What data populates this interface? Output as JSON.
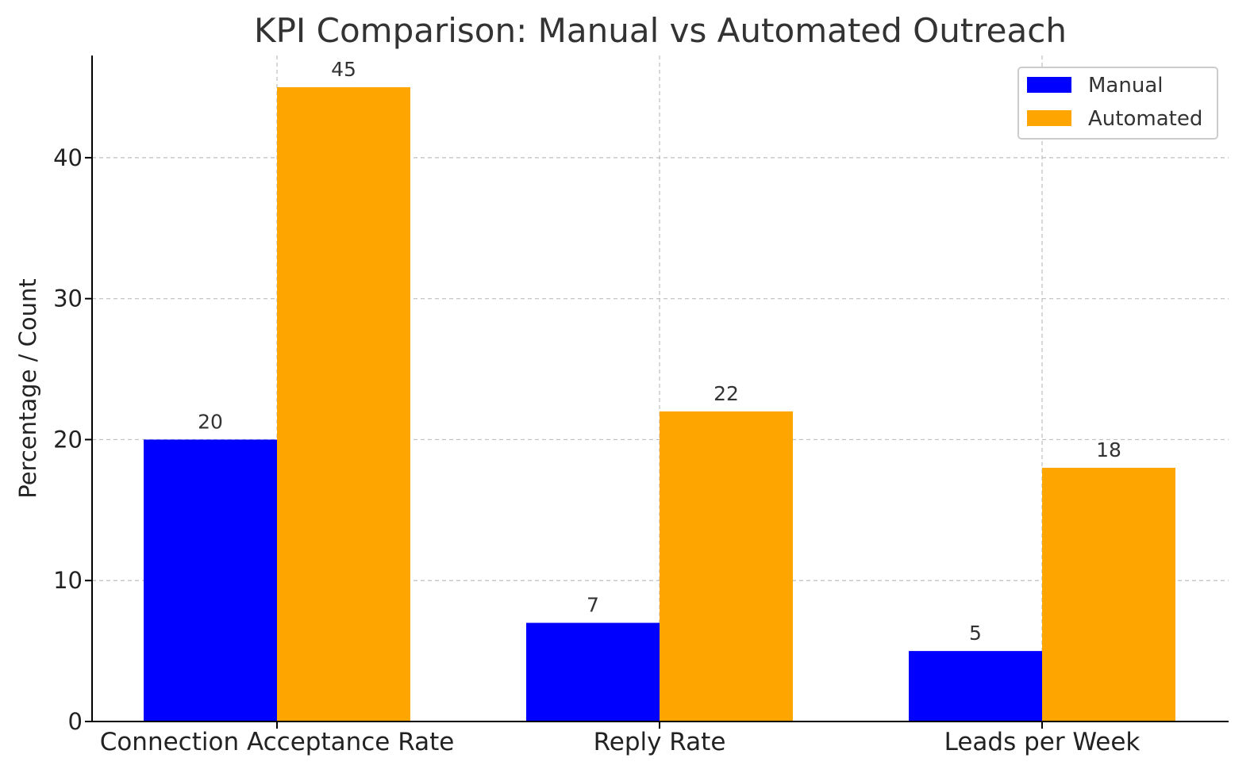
{
  "chart_data": {
    "type": "bar",
    "title": "KPI Comparison: Manual vs Automated Outreach",
    "xlabel": "",
    "ylabel": "Percentage / Count",
    "categories": [
      "Connection Acceptance Rate",
      "Reply Rate",
      "Leads per Week"
    ],
    "series": [
      {
        "name": "Manual",
        "values": [
          20,
          7,
          5
        ],
        "color": "#0000ff"
      },
      {
        "name": "Automated",
        "values": [
          45,
          22,
          18
        ],
        "color": "#ffa500"
      }
    ],
    "ylim": [
      0,
      47.25
    ],
    "yticks": [
      0,
      10,
      20,
      30,
      40
    ],
    "grid": true,
    "legend_position": "top-right",
    "data_labels": true
  }
}
